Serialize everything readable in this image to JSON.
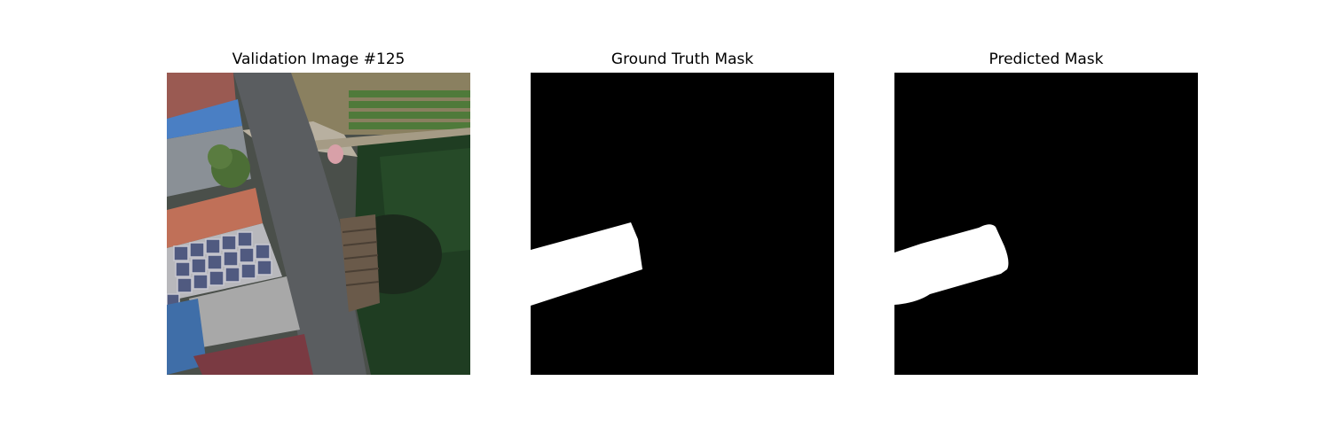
{
  "panels": [
    {
      "title": "Validation Image #125",
      "image": "aerial-photo"
    },
    {
      "title": "Ground Truth Mask",
      "image": "binary-mask"
    },
    {
      "title": "Predicted Mask",
      "image": "binary-mask"
    }
  ],
  "colors": {
    "background": "#ffffff",
    "mask_background": "#000000",
    "mask_foreground": "#ffffff"
  }
}
